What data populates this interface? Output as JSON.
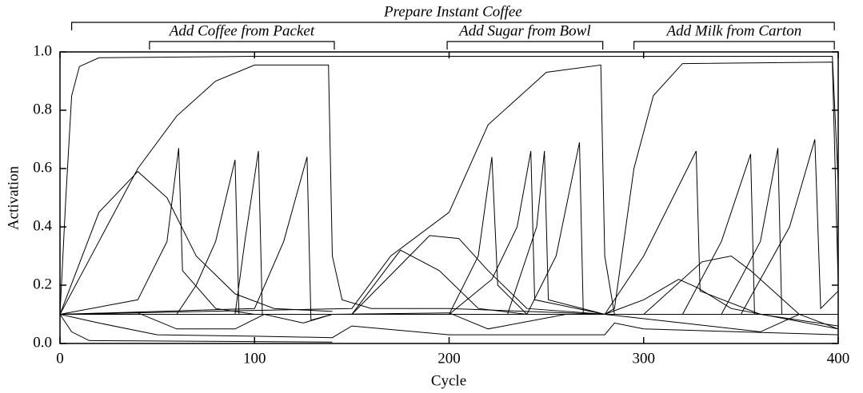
{
  "chart_data": {
    "type": "line",
    "x_label": "Cycle",
    "y_label": "Activation",
    "xlim": [
      0,
      400
    ],
    "xticks": [
      0,
      100,
      200,
      300,
      400
    ],
    "ylim": [
      0,
      1
    ],
    "yticks": [
      {
        "value": 0,
        "label": "0.0"
      },
      {
        "value": 0.2,
        "label": "0.2"
      },
      {
        "value": 0.4,
        "label": "0.4"
      },
      {
        "value": 0.6,
        "label": "0.6"
      },
      {
        "value": 0.8,
        "label": "0.8"
      },
      {
        "value": 1,
        "label": "1.0"
      }
    ],
    "grid": false,
    "annotations": [
      {
        "text": "Prepare Instant Coffee",
        "start": 6,
        "end": 398
      },
      {
        "text": "Add Coffee from Packet",
        "start": 46,
        "end": 141
      },
      {
        "text": "Add Sugar from Bowl",
        "start": 199,
        "end": 279
      },
      {
        "text": "Add Milk from Carton",
        "start": 295,
        "end": 398
      }
    ],
    "series": [
      {
        "color": "#000000",
        "x": [
          0,
          3,
          6,
          10,
          20,
          100,
          300,
          397,
          400
        ],
        "values": [
          0.1,
          0.5,
          0.85,
          0.95,
          0.98,
          0.985,
          0.985,
          0.985,
          0.55
        ]
      },
      {
        "color": "#000000",
        "x": [
          0,
          20,
          40,
          60,
          80,
          100,
          120,
          138,
          140,
          145,
          160,
          200,
          280,
          400
        ],
        "values": [
          0.1,
          0.35,
          0.6,
          0.78,
          0.9,
          0.955,
          0.955,
          0.955,
          0.3,
          0.15,
          0.12,
          0.12,
          0.1,
          0.1
        ]
      },
      {
        "color": "#000000",
        "x": [
          0,
          150,
          170,
          200,
          220,
          250,
          278,
          280,
          285,
          300,
          400
        ],
        "values": [
          0.1,
          0.12,
          0.3,
          0.45,
          0.75,
          0.93,
          0.955,
          0.3,
          0.1,
          0.1,
          0.1
        ]
      },
      {
        "color": "#000000",
        "x": [
          0,
          280,
          285,
          295,
          305,
          320,
          397,
          400
        ],
        "values": [
          0.1,
          0.1,
          0.12,
          0.6,
          0.85,
          0.96,
          0.965,
          0.2
        ]
      },
      {
        "color": "#000000",
        "x": [
          0,
          20,
          40,
          55,
          70,
          90,
          110,
          140
        ],
        "values": [
          0.1,
          0.45,
          0.59,
          0.5,
          0.3,
          0.17,
          0.12,
          0.11
        ]
      },
      {
        "color": "#000000",
        "x": [
          0,
          40,
          55,
          61,
          63,
          80,
          100,
          140
        ],
        "values": [
          0.1,
          0.15,
          0.35,
          0.67,
          0.25,
          0.12,
          0.1,
          0.1
        ]
      },
      {
        "color": "#000000",
        "x": [
          0,
          60,
          70,
          80,
          90,
          92,
          110,
          140
        ],
        "values": [
          0.1,
          0.1,
          0.2,
          0.35,
          0.63,
          0.1,
          0.1,
          0.1
        ]
      },
      {
        "color": "#000000",
        "x": [
          0,
          90,
          95,
          102,
          104,
          140
        ],
        "values": [
          0.1,
          0.1,
          0.35,
          0.66,
          0.1,
          0.1
        ]
      },
      {
        "color": "#000000",
        "x": [
          0,
          100,
          115,
          127,
          129,
          140
        ],
        "values": [
          0.1,
          0.12,
          0.35,
          0.64,
          0.08,
          0.1
        ]
      },
      {
        "color": "#000000",
        "x": [
          150,
          175,
          195,
          215,
          240,
          280
        ],
        "values": [
          0.1,
          0.32,
          0.25,
          0.12,
          0.1,
          0.1
        ]
      },
      {
        "color": "#000000",
        "x": [
          150,
          190,
          205,
          220,
          240,
          280
        ],
        "values": [
          0.1,
          0.37,
          0.36,
          0.25,
          0.12,
          0.1
        ]
      },
      {
        "color": "#000000",
        "x": [
          150,
          200,
          215,
          222,
          225,
          240,
          280
        ],
        "values": [
          0.1,
          0.1,
          0.3,
          0.64,
          0.2,
          0.1,
          0.1
        ]
      },
      {
        "color": "#000000",
        "x": [
          200,
          222,
          235,
          242,
          244,
          280
        ],
        "values": [
          0.1,
          0.22,
          0.4,
          0.66,
          0.15,
          0.1
        ]
      },
      {
        "color": "#000000",
        "x": [
          230,
          245,
          249,
          251,
          280
        ],
        "values": [
          0.1,
          0.4,
          0.66,
          0.15,
          0.1
        ]
      },
      {
        "color": "#000000",
        "x": [
          240,
          255,
          267,
          269,
          300
        ],
        "values": [
          0.1,
          0.3,
          0.69,
          0.1,
          0.1
        ]
      },
      {
        "color": "#000000",
        "x": [
          280,
          300,
          318,
          328,
          345,
          400
        ],
        "values": [
          0.1,
          0.15,
          0.22,
          0.19,
          0.12,
          0.05
        ]
      },
      {
        "color": "#000000",
        "x": [
          280,
          300,
          327,
          329,
          360,
          400
        ],
        "values": [
          0.1,
          0.3,
          0.66,
          0.18,
          0.1,
          0.06
        ]
      },
      {
        "color": "#000000",
        "x": [
          300,
          330,
          345,
          355,
          380,
          400
        ],
        "values": [
          0.1,
          0.28,
          0.3,
          0.25,
          0.1,
          0.05
        ]
      },
      {
        "color": "#000000",
        "x": [
          320,
          340,
          355,
          357,
          400
        ],
        "values": [
          0.1,
          0.35,
          0.65,
          0.1,
          0.1
        ]
      },
      {
        "color": "#000000",
        "x": [
          340,
          360,
          369,
          371,
          400
        ],
        "values": [
          0.1,
          0.35,
          0.67,
          0.1,
          0.1
        ]
      },
      {
        "color": "#000000",
        "x": [
          350,
          375,
          388,
          391,
          400
        ],
        "values": [
          0.1,
          0.4,
          0.7,
          0.12,
          0.18
        ]
      },
      {
        "color": "#000000",
        "x": [
          0,
          6,
          15,
          140
        ],
        "values": [
          0.1,
          0.04,
          0.01,
          0.005
        ]
      },
      {
        "color": "#000000",
        "x": [
          0,
          20,
          50,
          100,
          140,
          150,
          200,
          280,
          285,
          300,
          400
        ],
        "values": [
          0.1,
          0.07,
          0.03,
          0.025,
          0.02,
          0.06,
          0.03,
          0.03,
          0.07,
          0.05,
          0.03
        ]
      },
      {
        "color": "#000000",
        "x": [
          0,
          40,
          60,
          90,
          105,
          125,
          140,
          200,
          220,
          260,
          280,
          320,
          360,
          380,
          400
        ],
        "values": [
          0.1,
          0.105,
          0.05,
          0.05,
          0.1,
          0.07,
          0.1,
          0.105,
          0.05,
          0.1,
          0.1,
          0.07,
          0.04,
          0.1,
          0.1
        ]
      }
    ]
  }
}
